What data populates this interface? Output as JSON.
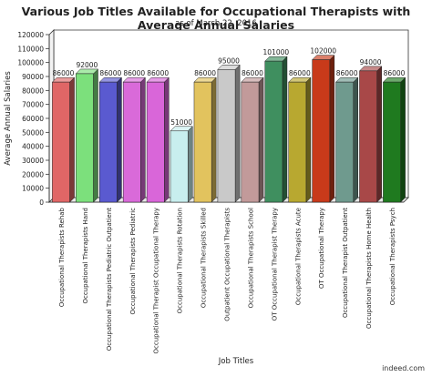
{
  "chart_data": {
    "type": "bar",
    "title": "Various Job Titles Available for Occupational Therapists with Average Annual Salaries",
    "subtitle": "as of March 22, 2016",
    "xlabel": "Job Titles",
    "ylabel": "Average Annual Salaries",
    "credit": "indeed.com",
    "ylim": [
      0,
      120000
    ],
    "yticks": [
      0,
      10000,
      20000,
      30000,
      40000,
      50000,
      60000,
      70000,
      80000,
      90000,
      100000,
      110000,
      120000
    ],
    "categories": [
      "Occupational Therapists Rehab",
      "Occupational Therapists Hand",
      "Occupational Therapists Pediatric Outpatient",
      "Occupational Therapists Pediatric",
      "Occupational Therapist Occupational Therapy",
      "Occupational Therapists Rotation",
      "Occupational Therapists Skilled",
      "Outpatient Occupational Therapists",
      "Occupational Therapists School",
      "OT Occupational Therapist Therapy",
      "Occupational Therapists Acute",
      "OT Occupational Therapy",
      "Occupational Therapist Outpatient",
      "Occupational Therapists Home Health",
      "Occupational Therapists Psych"
    ],
    "values": [
      86000,
      92000,
      86000,
      86000,
      86000,
      51000,
      86000,
      95000,
      86000,
      101000,
      86000,
      102000,
      86000,
      94000,
      86000
    ],
    "colors": [
      "#e06666",
      "#7ce07c",
      "#5a5ad0",
      "#d96ad9",
      "#d966d9",
      "#c8eeee",
      "#e2c35e",
      "#c9c9c9",
      "#c29a9a",
      "#3f8f5f",
      "#b8a830",
      "#c83a1a",
      "#6f9a8e",
      "#a84848",
      "#1f7a1f"
    ],
    "grid": false,
    "legend": "none"
  }
}
